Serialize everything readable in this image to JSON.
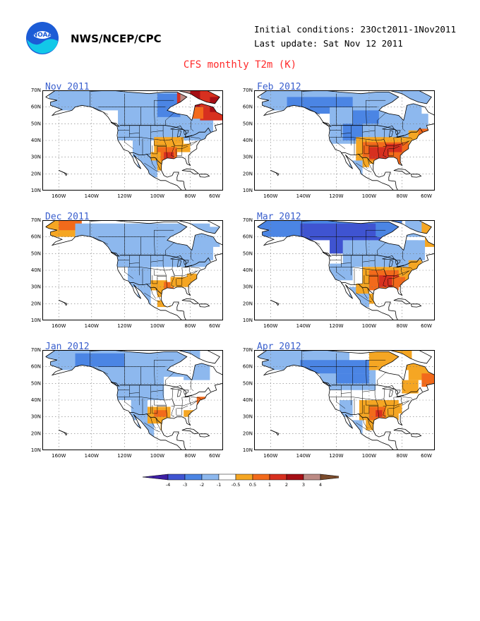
{
  "header": {
    "org": "NWS/NCEP/CPC",
    "initial_conditions": "Initial conditions: 23Oct2011-1Nov2011",
    "last_update": "Last update: Sat Nov 12 2011",
    "title": "CFS monthly T2m (K)",
    "logo_text": "NOAA"
  },
  "axes": {
    "lat_labels": [
      "70N",
      "60N",
      "50N",
      "40N",
      "30N",
      "20N",
      "10N"
    ],
    "lon_labels": [
      "160W",
      "140W",
      "120W",
      "100W",
      "80W",
      "60W"
    ]
  },
  "panels": [
    {
      "label": "Nov 2011"
    },
    {
      "label": "Feb 2012"
    },
    {
      "label": "Dec 2011"
    },
    {
      "label": "Mar 2012"
    },
    {
      "label": "Jan 2012"
    },
    {
      "label": "Apr 2012"
    }
  ],
  "colorbar": {
    "ticks": [
      "-4",
      "-3",
      "-2",
      "-1",
      "-0.5",
      "0.5",
      "1",
      "2",
      "3",
      "4"
    ],
    "colors": [
      "#3d1fa3",
      "#3f54d1",
      "#4b85e4",
      "#8db8ee",
      "#ffffff",
      "#f5a623",
      "#f26a1b",
      "#d7301f",
      "#a50f15",
      "#bc8a84",
      "#7a4b2c"
    ]
  },
  "colors": {
    "title": "#ff2a2a",
    "panel_title": "#3a5fcd",
    "land": "#ffffff",
    "ocean": "#ffffff",
    "grid": "#777777"
  }
}
